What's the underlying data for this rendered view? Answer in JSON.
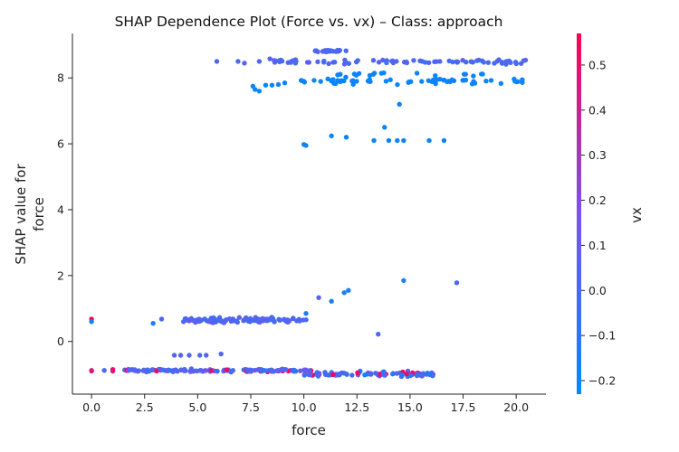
{
  "chart_data": {
    "type": "scatter",
    "title": "SHAP Dependence Plot (Force vs. vx) – Class: approach",
    "xlabel": "force",
    "ylabel_lines": [
      "SHAP value for",
      "force"
    ],
    "xlim": [
      -0.9,
      21.4
    ],
    "ylim": [
      -1.6,
      9.35
    ],
    "x_ticks": [
      0.0,
      2.5,
      5.0,
      7.5,
      10.0,
      12.5,
      15.0,
      17.5,
      20.0
    ],
    "x_tick_labels": [
      "0.0",
      "2.5",
      "5.0",
      "7.5",
      "10.0",
      "12.5",
      "15.0",
      "17.5",
      "20.0"
    ],
    "y_ticks": [
      0,
      2,
      4,
      6,
      8
    ],
    "y_tick_labels": [
      "0",
      "2",
      "4",
      "6",
      "8"
    ],
    "grid": false,
    "colorbar": {
      "label": "vx",
      "min": -0.23,
      "max": 0.57,
      "ticks": [
        -0.2,
        -0.1,
        0.0,
        0.1,
        0.2,
        0.3,
        0.4,
        0.5
      ],
      "tick_labels": [
        "−0.2",
        "−0.1",
        "0.0",
        "0.1",
        "0.2",
        "0.3",
        "0.4",
        "0.5"
      ],
      "colors": [
        "#008afb",
        "#7c52ec",
        "#ff0052"
      ]
    },
    "groups": [
      {
        "x_range": [
          1.5,
          10.4
        ],
        "y_center": -0.88,
        "y_jitter": 0.03,
        "count": 150,
        "c_mean": 0.03,
        "c_sd": 0.08
      },
      {
        "x_range": [
          10.0,
          16.2
        ],
        "y_center": -1.0,
        "y_jitter": 0.05,
        "count": 90,
        "c_mean": 0.0,
        "c_sd": 0.12
      },
      {
        "x_range": [
          4.3,
          10.2
        ],
        "y_center": 0.65,
        "y_jitter": 0.05,
        "count": 110,
        "c_mean": 0.03,
        "c_sd": 0.05
      },
      {
        "x_range": [
          9.5,
          20.3
        ],
        "y_center": 7.9,
        "y_jitter": 0.06,
        "count": 60,
        "c_mean": -0.19,
        "c_sd": 0.01
      },
      {
        "x_range": [
          10.5,
          18.6
        ],
        "y_center": 8.1,
        "y_jitter": 0.05,
        "count": 18,
        "c_mean": -0.19,
        "c_sd": 0.01
      },
      {
        "x_range": [
          8.5,
          20.5
        ],
        "y_center": 8.5,
        "y_jitter": 0.05,
        "count": 80,
        "c_mean": 0.02,
        "c_sd": 0.03
      },
      {
        "x_range": [
          10.5,
          12.0
        ],
        "y_center": 8.82,
        "y_jitter": 0.02,
        "count": 25,
        "c_mean": 0.02,
        "c_sd": 0.02
      }
    ],
    "points": [
      {
        "x": 0.0,
        "y": -0.88,
        "c": 0.5
      },
      {
        "x": 0.0,
        "y": -0.9,
        "c": 0.45
      },
      {
        "x": 0.0,
        "y": 0.68,
        "c": 0.55
      },
      {
        "x": 0.0,
        "y": 0.6,
        "c": -0.18
      },
      {
        "x": 0.6,
        "y": -0.88,
        "c": 0.03
      },
      {
        "x": 1.0,
        "y": -0.85,
        "c": 0.5
      },
      {
        "x": 1.0,
        "y": -0.9,
        "c": 0.48
      },
      {
        "x": 2.9,
        "y": 0.55,
        "c": -0.12
      },
      {
        "x": 3.3,
        "y": 0.68,
        "c": 0.03
      },
      {
        "x": 3.9,
        "y": -0.42,
        "c": 0.03
      },
      {
        "x": 4.2,
        "y": -0.42,
        "c": 0.03
      },
      {
        "x": 4.6,
        "y": -0.42,
        "c": 0.03
      },
      {
        "x": 5.1,
        "y": -0.42,
        "c": 0.03
      },
      {
        "x": 5.4,
        "y": -0.42,
        "c": 0.03
      },
      {
        "x": 6.1,
        "y": -0.38,
        "c": 0.03
      },
      {
        "x": 10.1,
        "y": 0.85,
        "c": -0.15
      },
      {
        "x": 10.7,
        "y": 1.33,
        "c": 0.03
      },
      {
        "x": 11.3,
        "y": 1.22,
        "c": -0.15
      },
      {
        "x": 11.9,
        "y": 1.48,
        "c": -0.15
      },
      {
        "x": 12.1,
        "y": 1.55,
        "c": -0.15
      },
      {
        "x": 14.7,
        "y": 1.85,
        "c": -0.15
      },
      {
        "x": 17.2,
        "y": 1.78,
        "c": 0.03
      },
      {
        "x": 13.5,
        "y": 0.22,
        "c": 0.03
      },
      {
        "x": 10.0,
        "y": 5.98,
        "c": -0.19
      },
      {
        "x": 10.1,
        "y": 5.95,
        "c": -0.19
      },
      {
        "x": 11.3,
        "y": 6.24,
        "c": -0.19
      },
      {
        "x": 12.0,
        "y": 6.2,
        "c": -0.19
      },
      {
        "x": 13.3,
        "y": 6.1,
        "c": -0.19
      },
      {
        "x": 13.8,
        "y": 6.5,
        "c": -0.19
      },
      {
        "x": 14.0,
        "y": 6.1,
        "c": -0.19
      },
      {
        "x": 14.4,
        "y": 6.1,
        "c": -0.19
      },
      {
        "x": 14.7,
        "y": 6.1,
        "c": -0.19
      },
      {
        "x": 15.9,
        "y": 6.1,
        "c": -0.19
      },
      {
        "x": 16.6,
        "y": 6.1,
        "c": -0.19
      },
      {
        "x": 14.5,
        "y": 7.2,
        "c": -0.19
      },
      {
        "x": 7.7,
        "y": 7.65,
        "c": -0.19
      },
      {
        "x": 7.9,
        "y": 7.6,
        "c": -0.19
      },
      {
        "x": 7.6,
        "y": 7.75,
        "c": -0.19
      },
      {
        "x": 8.2,
        "y": 7.78,
        "c": -0.19
      },
      {
        "x": 8.5,
        "y": 7.78,
        "c": -0.19
      },
      {
        "x": 8.8,
        "y": 7.8,
        "c": -0.19
      },
      {
        "x": 9.1,
        "y": 7.85,
        "c": -0.19
      },
      {
        "x": 5.9,
        "y": 8.5,
        "c": 0.03
      },
      {
        "x": 6.9,
        "y": 8.5,
        "c": 0.03
      },
      {
        "x": 7.2,
        "y": 8.45,
        "c": 0.03
      },
      {
        "x": 7.9,
        "y": 8.5,
        "c": 0.03
      },
      {
        "x": 8.4,
        "y": 8.58,
        "c": 0.03
      }
    ]
  }
}
